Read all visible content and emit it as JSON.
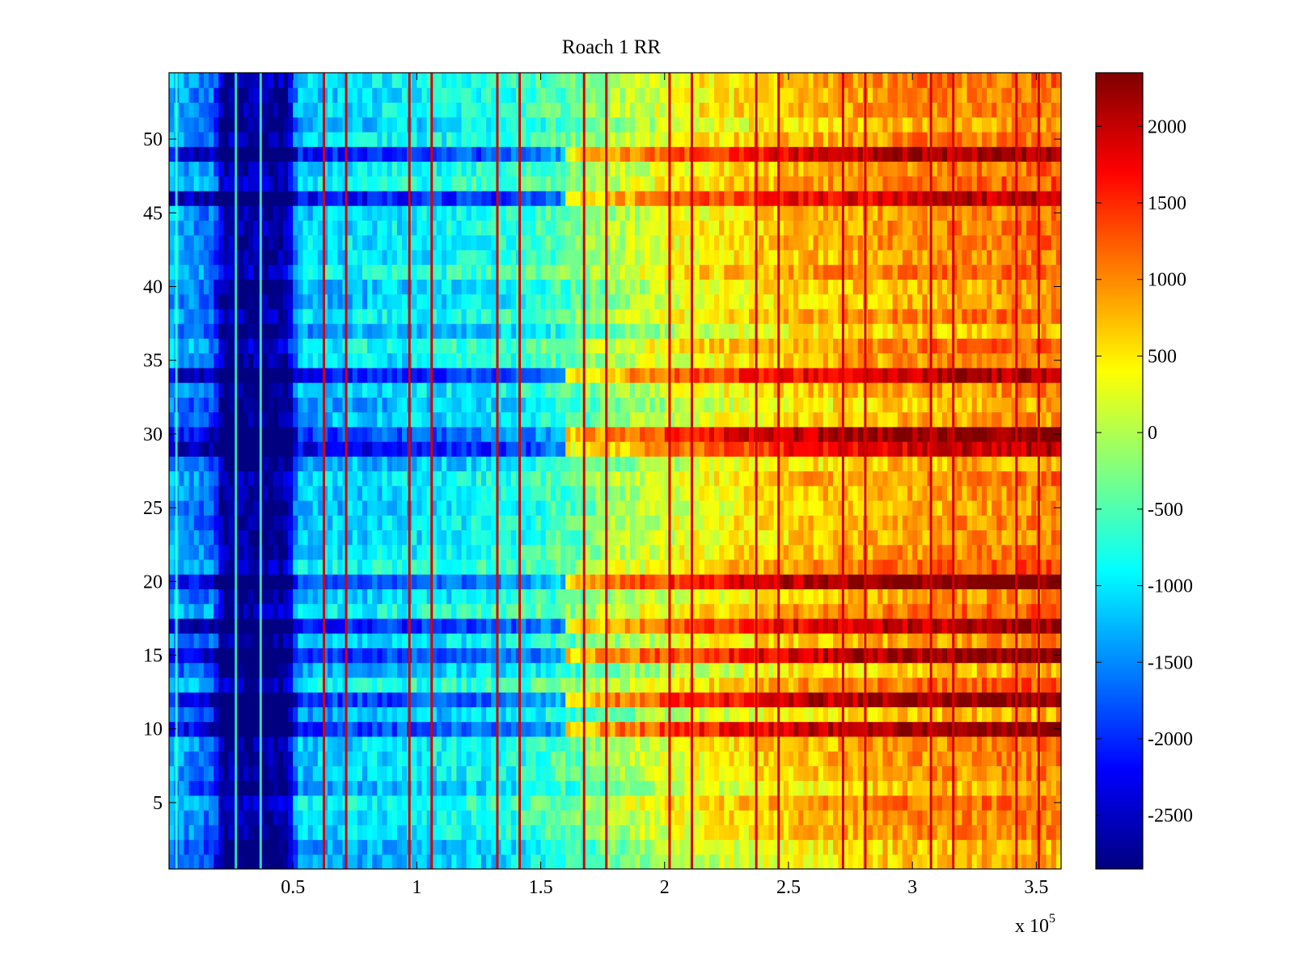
{
  "chart_data": {
    "type": "heatmap",
    "title": "Roach 1 RR",
    "xlabel": "",
    "ylabel": "",
    "x_exponent_label": "x 10",
    "x_exponent_power": "5",
    "xlim": [
      0,
      3.6
    ],
    "ylim": [
      0.5,
      54.5
    ],
    "x_ticks": [
      0.5,
      1,
      1.5,
      2,
      2.5,
      3,
      3.5
    ],
    "x_tick_labels": [
      "0.5",
      "1",
      "1.5",
      "2",
      "2.5",
      "3",
      "3.5"
    ],
    "y_ticks": [
      5,
      10,
      15,
      20,
      25,
      30,
      35,
      40,
      45,
      50
    ],
    "y_tick_labels": [
      "5",
      "10",
      "15",
      "20",
      "25",
      "30",
      "35",
      "40",
      "45",
      "50"
    ],
    "colormap": "jet",
    "clim": [
      -2850,
      2350
    ],
    "colorbar_ticks": [
      2000,
      1500,
      1000,
      500,
      0,
      -500,
      -1000,
      -1500,
      -2000,
      -2500
    ],
    "colorbar_tick_labels": [
      "2000",
      "1500",
      "1000",
      "500",
      "0",
      "-500",
      "-1000",
      "-1500",
      "-2000",
      "-2500"
    ],
    "rows": 54,
    "trend_control_points": [
      {
        "x": 0.0,
        "value": -1300
      },
      {
        "x": 0.18,
        "value": -1700
      },
      {
        "x": 0.22,
        "value": -2750
      },
      {
        "x": 0.48,
        "value": -2700
      },
      {
        "x": 0.52,
        "value": -1200
      },
      {
        "x": 1.0,
        "value": -1000
      },
      {
        "x": 1.4,
        "value": -800
      },
      {
        "x": 1.6,
        "value": -500
      },
      {
        "x": 1.8,
        "value": -100
      },
      {
        "x": 2.1,
        "value": 300
      },
      {
        "x": 2.5,
        "value": 650
      },
      {
        "x": 3.0,
        "value": 900
      },
      {
        "x": 3.6,
        "value": 1050
      }
    ],
    "highlighted_rows": [
      10,
      12,
      15,
      17,
      20,
      29,
      30,
      34,
      46,
      49
    ],
    "vertical_stripes_x": [
      0.625,
      0.715,
      0.97,
      1.06,
      1.325,
      1.415,
      1.675,
      1.765,
      2.02,
      2.11,
      2.37,
      2.46,
      2.72,
      2.81,
      3.075,
      3.165,
      3.42,
      3.51
    ]
  }
}
